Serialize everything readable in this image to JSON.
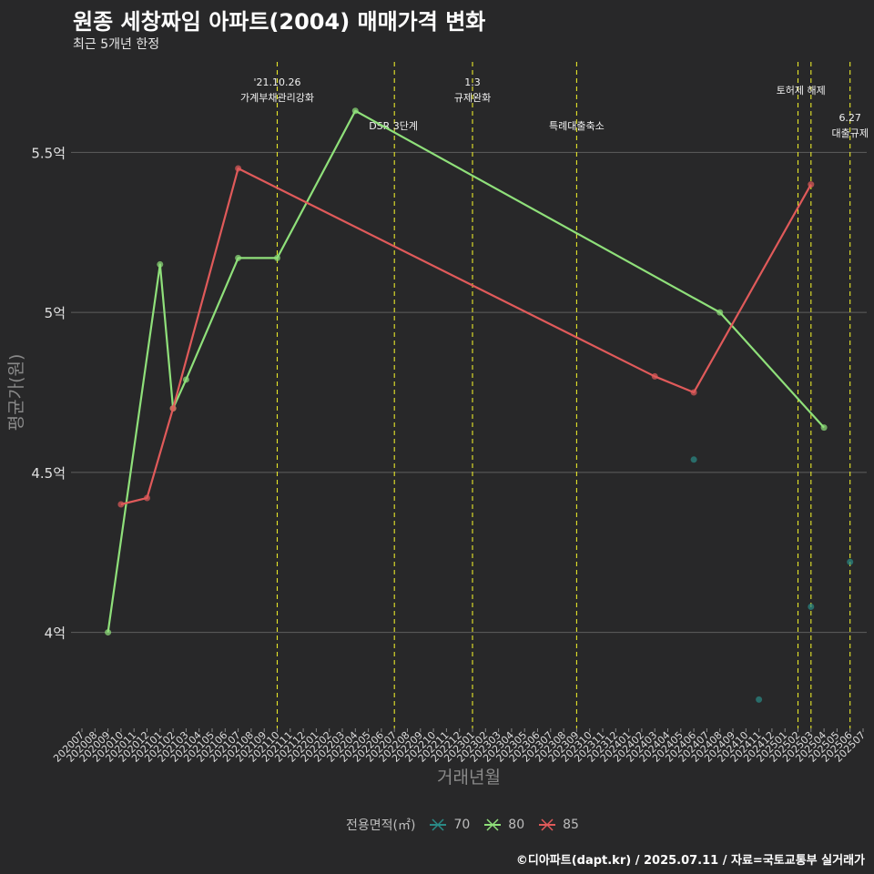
{
  "title": "원종 세창짜임 아파트(2004) 매매가격 변화",
  "subtitle": "최근 5개년 한정",
  "caption": "©디아파트(dapt.kr) / 2025.07.11 / 자료=국토교통부 실거래가",
  "legend": {
    "title": "전용면적(㎡)",
    "items": [
      {
        "label": "70",
        "color": "#2a8a86"
      },
      {
        "label": "80",
        "color": "#8fe07a"
      },
      {
        "label": "85",
        "color": "#e05a5a"
      }
    ]
  },
  "chart_data": {
    "type": "line",
    "xlabel": "거래년월",
    "ylabel": "평균가(원)",
    "x_ticks": [
      "202007",
      "202008",
      "202009",
      "202010",
      "202011",
      "202012",
      "202101",
      "202102",
      "202103",
      "202104",
      "202105",
      "202106",
      "202107",
      "202108",
      "202109",
      "202110",
      "202111",
      "202112",
      "202201",
      "202202",
      "202203",
      "202204",
      "202205",
      "202206",
      "202207",
      "202208",
      "202209",
      "202210",
      "202211",
      "202212",
      "202301",
      "202302",
      "202303",
      "202304",
      "202305",
      "202306",
      "202307",
      "202308",
      "202309",
      "202310",
      "202311",
      "202312",
      "202401",
      "202402",
      "202403",
      "202404",
      "202405",
      "202406",
      "202407",
      "202408",
      "202409",
      "202410",
      "202411",
      "202412",
      "202501",
      "202502",
      "202503",
      "202504",
      "202505",
      "202506",
      "202507"
    ],
    "y_ticks": [
      {
        "value": 4.0,
        "label": "4억"
      },
      {
        "value": 4.5,
        "label": "4.5억"
      },
      {
        "value": 5.0,
        "label": "5억"
      },
      {
        "value": 5.5,
        "label": "5.5억"
      }
    ],
    "ylim": [
      3.7,
      5.8
    ],
    "grid": true,
    "legend_position": "bottom",
    "series": [
      {
        "name": "70",
        "color": "#2a8a86",
        "mode": "points",
        "points": [
          [
            "202406",
            4.54
          ],
          [
            "202411",
            3.79
          ],
          [
            "202503",
            4.08
          ],
          [
            "202506",
            4.22
          ]
        ]
      },
      {
        "name": "80",
        "color": "#8fe07a",
        "mode": "line",
        "points": [
          [
            "202009",
            4.0
          ],
          [
            "202101",
            5.15
          ],
          [
            "202102",
            4.7
          ],
          [
            "202103",
            4.79
          ],
          [
            "202107",
            5.17
          ],
          [
            "202110",
            5.17
          ],
          [
            "202204",
            5.63
          ],
          [
            "202408",
            5.0
          ],
          [
            "202504",
            4.64
          ]
        ]
      },
      {
        "name": "85",
        "color": "#e05a5a",
        "mode": "line",
        "points": [
          [
            "202010",
            4.4
          ],
          [
            "202012",
            4.42
          ],
          [
            "202102",
            4.7
          ],
          [
            "202107",
            5.45
          ],
          [
            "202403",
            4.8
          ],
          [
            "202406",
            4.75
          ],
          [
            "202503",
            5.4
          ]
        ]
      }
    ],
    "events": [
      {
        "x": "202110",
        "lines": [
          "'21.10.26",
          "가계부채관리강화"
        ],
        "row": 1,
        "align": "center"
      },
      {
        "x": "202207",
        "lines": [
          "DSR 3단계"
        ],
        "row": 3,
        "align": "right"
      },
      {
        "x": "202301",
        "lines": [
          "1.3",
          "규제완화"
        ],
        "row": 1,
        "align": "center"
      },
      {
        "x": "202309",
        "lines": [
          "특례대출축소"
        ],
        "row": 3,
        "align": "center"
      },
      {
        "x": "202502",
        "lines": [],
        "row": 2,
        "align": "center"
      },
      {
        "x": "202503",
        "lines": [
          "토허제 해제"
        ],
        "row": 2,
        "align": "left"
      },
      {
        "x": "202506",
        "lines": [
          "6.27",
          "대출규제"
        ],
        "row": 2.5,
        "align": "center"
      }
    ]
  }
}
